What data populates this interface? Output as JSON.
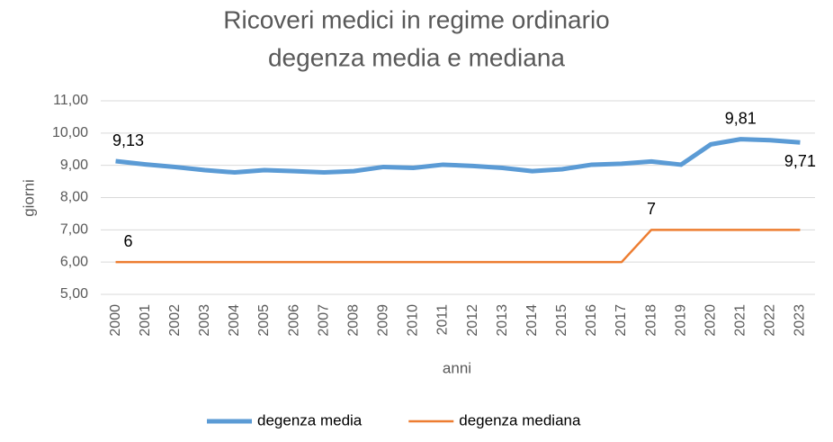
{
  "chart_data": {
    "type": "line",
    "title": "Ricoveri medici in regime ordinario",
    "subtitle": "degenza media e mediana",
    "x_label": "anni",
    "y_label": "giorni",
    "categories": [
      "2000",
      "2001",
      "2002",
      "2003",
      "2004",
      "2005",
      "2006",
      "2007",
      "2008",
      "2009",
      "2010",
      "2011",
      "2012",
      "2013",
      "2014",
      "2015",
      "2016",
      "2017",
      "2018",
      "2019",
      "2020",
      "2021",
      "2022",
      "2023"
    ],
    "series": [
      {
        "name": "degenza media",
        "color": "#5b9bd5",
        "values": [
          9.13,
          9.03,
          8.95,
          8.85,
          8.78,
          8.85,
          8.82,
          8.78,
          8.82,
          8.95,
          8.92,
          9.02,
          8.98,
          8.92,
          8.82,
          8.88,
          9.02,
          9.05,
          9.12,
          9.02,
          9.65,
          9.81,
          9.78,
          9.71
        ],
        "value_labels": [
          "9,13",
          null,
          null,
          null,
          null,
          null,
          null,
          null,
          null,
          null,
          null,
          null,
          null,
          null,
          null,
          null,
          null,
          null,
          null,
          null,
          null,
          "9,81",
          null,
          "9,71"
        ]
      },
      {
        "name": "degenza mediana",
        "color": "#ed7d31",
        "values": [
          6,
          6,
          6,
          6,
          6,
          6,
          6,
          6,
          6,
          6,
          6,
          6,
          6,
          6,
          6,
          6,
          6,
          6,
          7,
          7,
          7,
          7,
          7,
          7
        ],
        "value_labels": [
          "6",
          null,
          null,
          null,
          null,
          null,
          null,
          null,
          null,
          null,
          null,
          null,
          null,
          null,
          null,
          null,
          null,
          null,
          "7",
          null,
          null,
          null,
          null,
          null
        ]
      }
    ],
    "ylim": [
      5,
      11
    ],
    "yticks": [
      {
        "value": 5,
        "label": "5,00"
      },
      {
        "value": 6,
        "label": "6,00"
      },
      {
        "value": 7,
        "label": "7,00"
      },
      {
        "value": 8,
        "label": "8,00"
      },
      {
        "value": 9,
        "label": "9,00"
      },
      {
        "value": 10,
        "label": "10,00"
      },
      {
        "value": 11,
        "label": "11,00"
      }
    ],
    "grid": true,
    "legend": "bottom"
  }
}
